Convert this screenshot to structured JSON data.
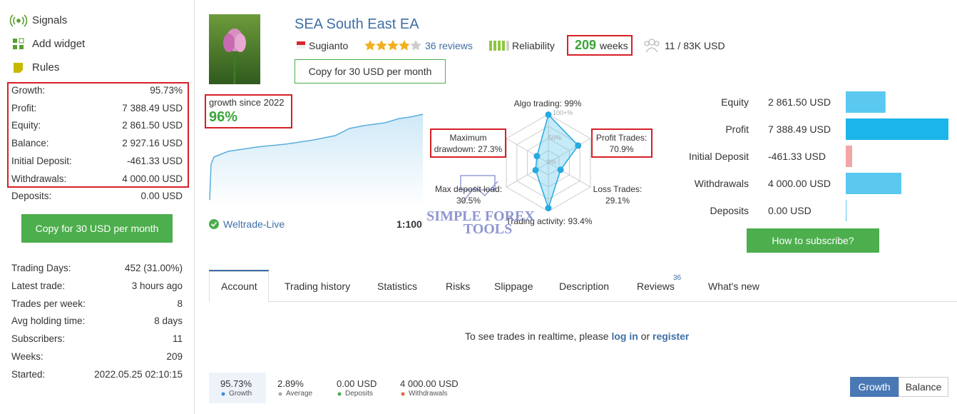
{
  "sidebar": {
    "menu": [
      "Signals",
      "Add widget",
      "Rules"
    ],
    "summary": [
      [
        "Growth:",
        "95.73%"
      ],
      [
        "Profit:",
        "7 388.49 USD"
      ],
      [
        "Equity:",
        "2 861.50 USD"
      ],
      [
        "Balance:",
        "2 927.16 USD"
      ],
      [
        "Initial Deposit:",
        "-461.33 USD"
      ],
      [
        "Withdrawals:",
        "4 000.00 USD"
      ],
      [
        "Deposits:",
        "0.00 USD"
      ]
    ],
    "copy_button": "Copy for 30 USD per month",
    "details": [
      [
        "Trading Days:",
        "452 (31.00%)"
      ],
      [
        "Latest trade:",
        "3 hours ago"
      ],
      [
        "Trades per week:",
        "8"
      ],
      [
        "Avg holding time:",
        "8 days"
      ],
      [
        "Subscribers:",
        "11"
      ],
      [
        "Weeks:",
        "209"
      ],
      [
        "Started:",
        "2022.05.25 02:10:15"
      ]
    ]
  },
  "header": {
    "title": "SEA South East EA",
    "author": "Sugianto",
    "reviews": "36 reviews",
    "reliability": "Reliability",
    "weeks": {
      "value": "209",
      "unit": "weeks"
    },
    "subscribers": "11 / 83K USD",
    "copy_button": "Copy for 30 USD per month"
  },
  "growth": {
    "label": "growth since 2022",
    "value": "96%"
  },
  "broker": "Weltrade-Live",
  "leverage": "1:100",
  "radar": {
    "ring_labels": [
      "100+%",
      "50%",
      "0%"
    ],
    "axes": [
      {
        "name": "Algo trading:",
        "value": "99%"
      },
      {
        "name": "Profit Trades:",
        "value": "70.9%"
      },
      {
        "name": "Loss Trades:",
        "value": "29.1%"
      },
      {
        "name": "Trading activity:",
        "value": "93.4%"
      },
      {
        "name": "Max deposit load:",
        "value": "30.5%"
      },
      {
        "name": "Maximum drawdown:",
        "value": "27.3%"
      }
    ]
  },
  "balance_bars": [
    {
      "name": "Equity",
      "value": "2 861.50 USD"
    },
    {
      "name": "Profit",
      "value": "7 388.49 USD"
    },
    {
      "name": "Initial Deposit",
      "value": "-461.33 USD"
    },
    {
      "name": "Withdrawals",
      "value": "4 000.00 USD"
    },
    {
      "name": "Deposits",
      "value": "0.00 USD"
    }
  ],
  "subscribe_button": "How to subscribe?",
  "tabs": [
    "Account",
    "Trading history",
    "Statistics",
    "Risks",
    "Slippage",
    "Description",
    "Reviews",
    "What's new"
  ],
  "reviews_count": "36",
  "message": {
    "text": "To see trades in realtime, please",
    "login": "log in",
    "or": "or",
    "register": "register"
  },
  "totals": [
    {
      "value": "95.73%",
      "label": "Growth"
    },
    {
      "value": "2.89%",
      "label": "Average"
    },
    {
      "value": "0.00 USD",
      "label": "Deposits"
    },
    {
      "value": "4 000.00 USD",
      "label": "Withdrawals"
    }
  ],
  "toggle": [
    "Growth",
    "Balance"
  ],
  "watermark": [
    "SIMPLE FOREX",
    "TOOLS"
  ]
}
